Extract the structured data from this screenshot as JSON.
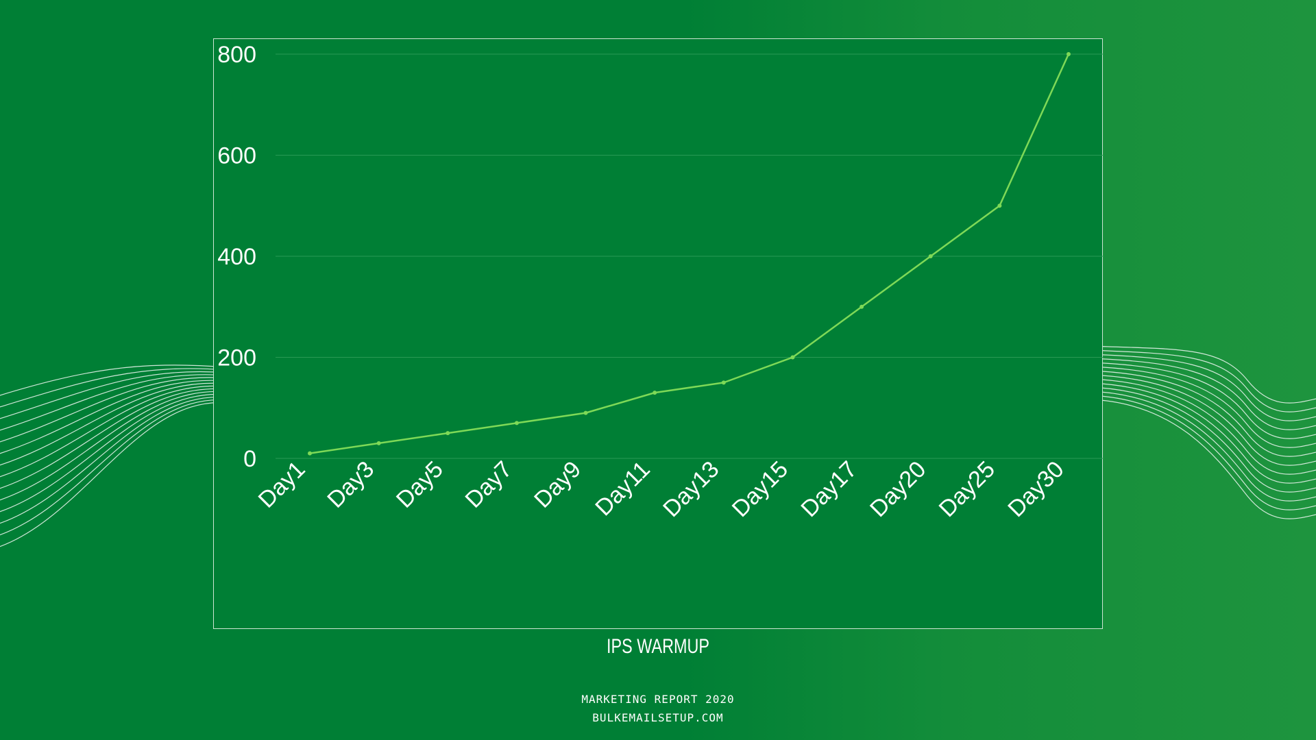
{
  "chart_data": {
    "type": "line",
    "title": "IPS WARMUP",
    "xlabel": "",
    "ylabel": "",
    "categories": [
      "Day1",
      "Day3",
      "Day5",
      "Day7",
      "Day9",
      "Day11",
      "Day13",
      "Day15",
      "Day17",
      "Day20",
      "Day25",
      "Day30"
    ],
    "values": [
      10,
      30,
      50,
      70,
      90,
      130,
      150,
      200,
      300,
      400,
      500,
      800
    ],
    "ylim": [
      0,
      800
    ],
    "yticks": [
      0,
      200,
      400,
      600,
      800
    ],
    "grid": true,
    "legend": "none",
    "colors": {
      "line": "#7ed957",
      "grid": "#2a9a55",
      "text": "#ffffff",
      "frame": "#cfe6d4"
    }
  },
  "footer": {
    "line1": "MARKETING REPORT 2020",
    "line2": "BULKEMAILSETUP.COM"
  }
}
